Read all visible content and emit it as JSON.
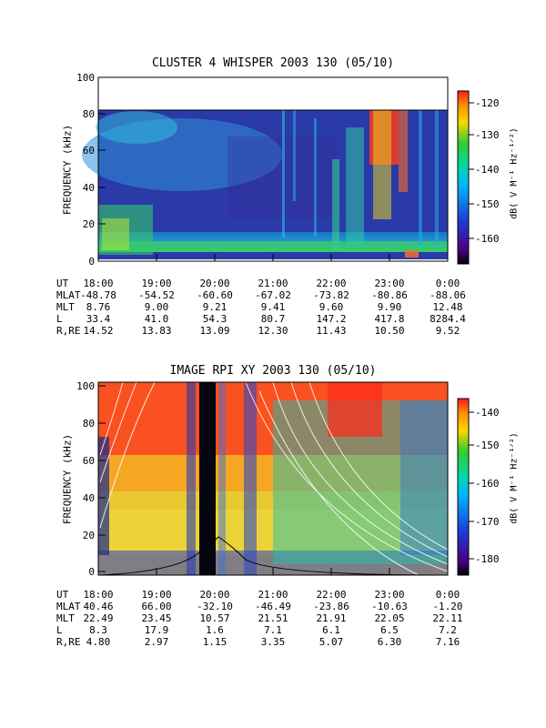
{
  "chart_data": [
    {
      "type": "heatmap",
      "title": "CLUSTER 4 WHISPER 2003 130 (05/10)",
      "ylabel": "FREQUENCY (kHz)",
      "ylim": [
        0,
        100
      ],
      "y_ticks": [
        "0",
        "20",
        "40",
        "60",
        "80",
        "100"
      ],
      "x_ticks": [
        "18:00",
        "19:00",
        "20:00",
        "21:00",
        "22:00",
        "23:00",
        "0:00"
      ],
      "data_max_frequency_khz": 80,
      "colorbar": {
        "label": "dB( V M⁻¹ Hz⁻¹ᐟ²)",
        "range": [
          -167,
          -117
        ],
        "ticks": [
          "-120",
          "-130",
          "-140",
          "-150",
          "-160"
        ]
      },
      "ephemeris": {
        "labels": [
          "UT",
          "MLAT",
          "MLT",
          "L",
          "R,RE"
        ],
        "rows": [
          [
            "18:00",
            "19:00",
            "20:00",
            "21:00",
            "22:00",
            "23:00",
            "0:00"
          ],
          [
            "-48.78",
            "-54.52",
            "-60.60",
            "-67.02",
            "-73.82",
            "-80.86",
            "-88.06"
          ],
          [
            "8.76",
            "9.00",
            "9.21",
            "9.41",
            "9.60",
            "9.90",
            "12.48"
          ],
          [
            "33.4",
            "41.0",
            "54.3",
            "80.7",
            "147.2",
            "417.8",
            "8284.4"
          ],
          [
            "14.52",
            "13.83",
            "13.09",
            "12.30",
            "11.43",
            "10.50",
            "9.52"
          ]
        ]
      }
    },
    {
      "type": "heatmap",
      "title": "IMAGE RPI XY 2003 130 (05/10)",
      "ylabel": "FREQUENCY (kHz)",
      "ylim": [
        0,
        100
      ],
      "y_ticks": [
        "0",
        "20",
        "40",
        "60",
        "80",
        "100"
      ],
      "x_ticks": [
        "18:00",
        "19:00",
        "20:00",
        "21:00",
        "22:00",
        "23:00",
        "0:00"
      ],
      "colorbar": {
        "label": "dB( V M⁻¹ Hz⁻¹ᐟ²)",
        "range": [
          -186,
          -134
        ],
        "ticks": [
          "-140",
          "-150",
          "-160",
          "-170",
          "-180"
        ]
      },
      "ephemeris": {
        "labels": [
          "UT",
          "MLAT",
          "MLT",
          "L",
          "R,RE"
        ],
        "rows": [
          [
            "18:00",
            "19:00",
            "20:00",
            "21:00",
            "22:00",
            "23:00",
            "0:00"
          ],
          [
            "40.46",
            "66.00",
            "-32.10",
            "-46.49",
            "-23.86",
            "-10.63",
            "-1.20"
          ],
          [
            "22.49",
            "23.45",
            "10.57",
            "21.51",
            "21.91",
            "22.05",
            "22.11"
          ],
          [
            "8.3",
            "17.9",
            "1.6",
            "7.1",
            "6.1",
            "6.5",
            "7.2"
          ],
          [
            "4.80",
            "2.97",
            "1.15",
            "3.35",
            "5.07",
            "6.30",
            "7.16"
          ]
        ]
      }
    }
  ]
}
